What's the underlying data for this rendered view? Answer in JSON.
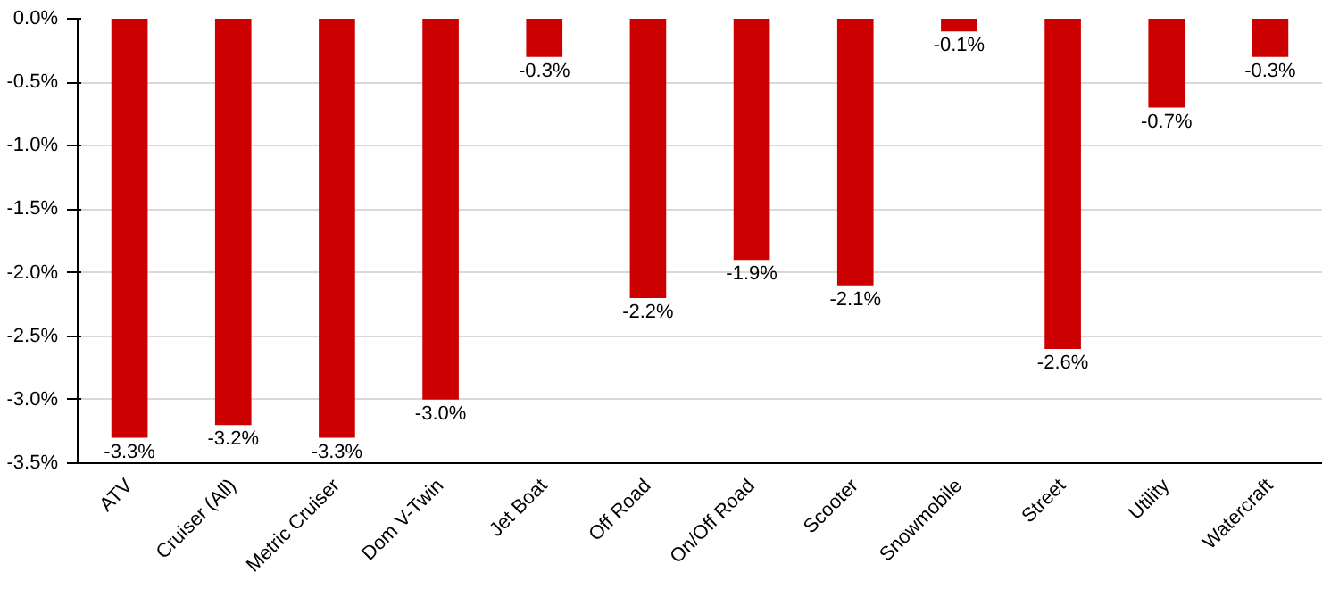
{
  "chart_data": {
    "type": "bar",
    "categories": [
      "ATV",
      "Cruiser (All)",
      "Metric Cruiser",
      "Dom V-Twin",
      "Jet Boat",
      "Off Road",
      "On/Off Road",
      "Scooter",
      "Snowmobile",
      "Street",
      "Utility",
      "Watercraft"
    ],
    "values": [
      -3.3,
      -3.2,
      -3.3,
      -3.0,
      -0.3,
      -2.2,
      -1.9,
      -2.1,
      -0.1,
      -2.6,
      -0.7,
      -0.3
    ],
    "value_labels": [
      "-3.3%",
      "-3.2%",
      "-3.3%",
      "-3.0%",
      "-0.3%",
      "-2.2%",
      "-1.9%",
      "-2.1%",
      "-0.1%",
      "-2.6%",
      "-0.7%",
      "-0.3%"
    ],
    "color": "#cc0000",
    "ylim": [
      -3.5,
      0
    ],
    "yticks": [
      {
        "value": 0,
        "label": "0.0%"
      },
      {
        "value": -0.5,
        "label": "-0.5%"
      },
      {
        "value": -1,
        "label": "-1.0%"
      },
      {
        "value": -1.5,
        "label": "-1.5%"
      },
      {
        "value": -2,
        "label": "-2.0%"
      },
      {
        "value": -2.5,
        "label": "-2.5%"
      },
      {
        "value": -3,
        "label": "-3.0%"
      },
      {
        "value": -3.5,
        "label": "-3.5%"
      }
    ],
    "grid": "y"
  }
}
